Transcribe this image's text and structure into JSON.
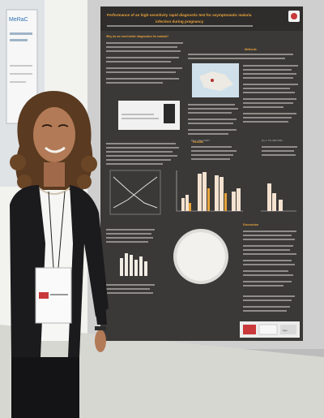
{
  "poster": {
    "title_line1": "Performance of an high-sensitivity rapid diagnostic test for asymptomatic malaria",
    "title_line2": "infection during pregnancy",
    "sections": {
      "intro": "Why do we need better diagnostics for malaria?",
      "methods": "Methods",
      "results": "Results",
      "discussion": "Discussion"
    },
    "figure_caption_1": "Fig. 1. Uses of RDT",
    "figure_caption_2": "Fig. 2. The uRDT DDF",
    "partner_logo": "logo"
  },
  "side_panel": {
    "label": "MeRaC"
  },
  "colors": {
    "poster_bg": "#3b3938",
    "poster_accent": "#e8a33a",
    "panel_grey": "#cfcfcf",
    "floor": "#d7d7d2",
    "jacket": "#1b1a1c",
    "hair": "#5a3a20"
  }
}
